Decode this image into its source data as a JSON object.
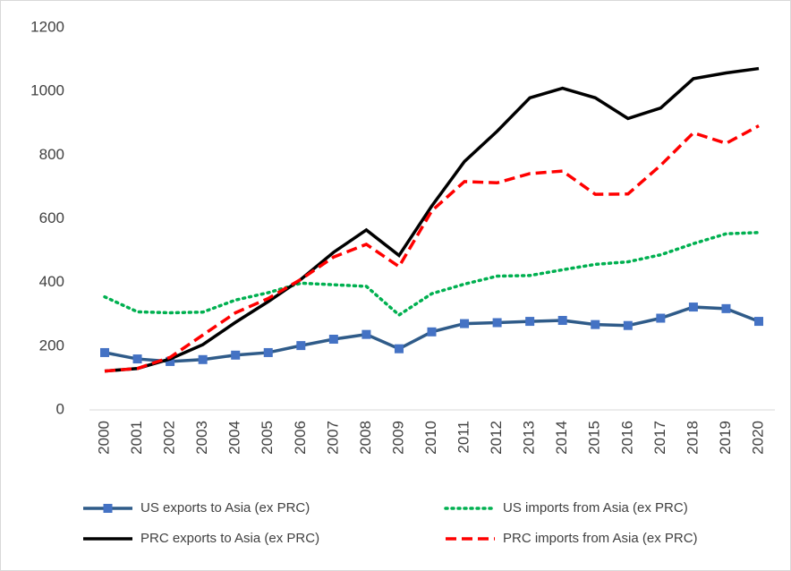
{
  "chart_data": {
    "type": "line",
    "categories": [
      "2000",
      "2001",
      "2002",
      "2003",
      "2004",
      "2005",
      "2006",
      "2007",
      "2008",
      "2009",
      "2010",
      "2011",
      "2012",
      "2013",
      "2014",
      "2015",
      "2016",
      "2017",
      "2018",
      "2019",
      "2020"
    ],
    "series": [
      {
        "name": "US exports to Asia (ex PRC)",
        "color": "#2f5b89",
        "dash": "solid",
        "marker": "square",
        "marker_color": "#4472c4",
        "values": [
          180,
          160,
          152,
          158,
          172,
          180,
          202,
          222,
          237,
          192,
          245,
          271,
          274,
          278,
          281,
          268,
          265,
          288,
          323,
          318,
          278
        ]
      },
      {
        "name": "US imports from Asia (ex PRC)",
        "color": "#00b050",
        "dash": "dot",
        "marker": "none",
        "values": [
          355,
          308,
          305,
          307,
          345,
          368,
          398,
          393,
          388,
          298,
          365,
          395,
          420,
          422,
          440,
          457,
          465,
          487,
          522,
          553,
          557
        ]
      },
      {
        "name": "PRC exports to Asia (ex PRC)",
        "color": "#000000",
        "dash": "solid",
        "marker": "none",
        "values": [
          122,
          130,
          160,
          205,
          275,
          340,
          410,
          495,
          565,
          485,
          640,
          780,
          875,
          980,
          1010,
          980,
          915,
          948,
          1040,
          1058,
          1072
        ]
      },
      {
        "name": "PRC imports from Asia (ex PRC)",
        "color": "#ff0000",
        "dash": "dash",
        "marker": "none",
        "values": [
          122,
          130,
          165,
          235,
          305,
          350,
          410,
          480,
          520,
          450,
          625,
          717,
          713,
          742,
          750,
          677,
          678,
          768,
          870,
          837,
          892
        ]
      }
    ],
    "ylim": [
      0,
      1200
    ],
    "yticks": [
      0,
      200,
      400,
      600,
      800,
      1000,
      1200
    ],
    "grid": false,
    "legend": "bottom"
  }
}
